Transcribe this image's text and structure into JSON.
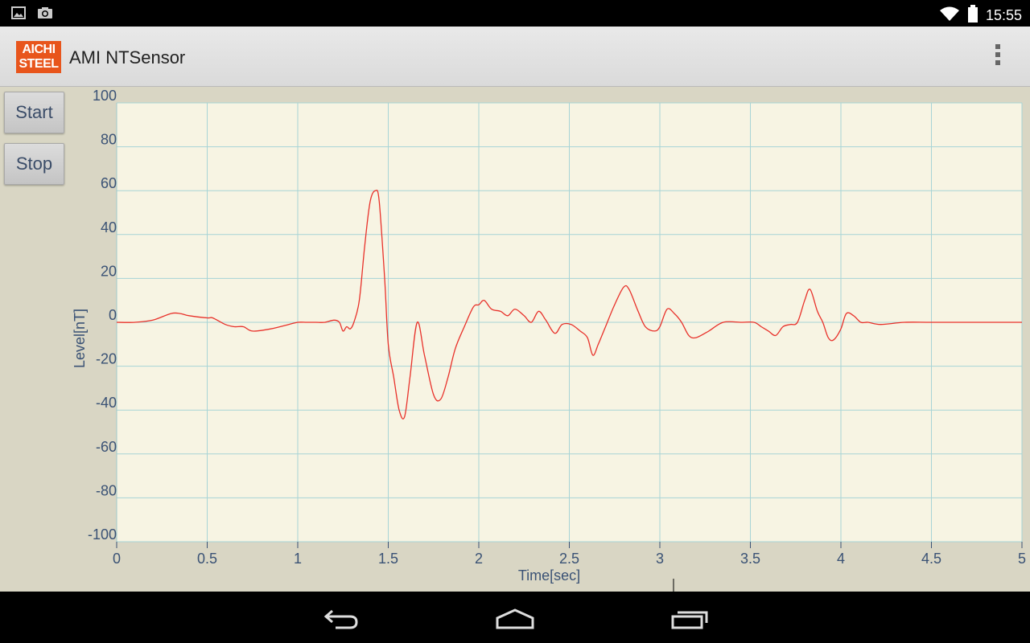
{
  "status_bar": {
    "time": "15:55",
    "icons": [
      "picture-icon",
      "camera-icon",
      "wifi-icon",
      "battery-icon"
    ]
  },
  "app": {
    "title": "AMI NTSensor",
    "logo_line1": "AICHI",
    "logo_line2": "STEEL",
    "brand_color": "#e8551c"
  },
  "controls": {
    "start_label": "Start",
    "stop_label": "Stop"
  },
  "chart_data": {
    "type": "line",
    "xlabel": "Time[sec]",
    "ylabel": "Level[nT]",
    "xlim": [
      0,
      5
    ],
    "ylim": [
      -100,
      100
    ],
    "x_ticks": [
      0,
      0.5,
      1,
      1.5,
      2,
      2.5,
      3,
      3.5,
      4,
      4.5,
      5
    ],
    "x_tick_labels": [
      "0",
      "0.5",
      "1",
      "1.5",
      "2",
      "2.5",
      "3",
      "3.5",
      "4",
      "4.5",
      "5"
    ],
    "y_ticks": [
      100,
      80,
      60,
      40,
      20,
      0,
      -20,
      -40,
      -60,
      -80,
      -100
    ],
    "y_tick_labels": [
      "100",
      "80",
      "60",
      "40",
      "20",
      "0",
      "-20",
      "-40",
      "-60",
      "-80",
      "-100"
    ],
    "grid": true,
    "line_color": "#e8312a",
    "plot_background": "#f7f4e3",
    "grid_color": "#a7d4d6",
    "series": [
      {
        "points": [
          [
            0,
            0
          ],
          [
            0.1,
            0
          ],
          [
            0.2,
            1
          ],
          [
            0.3,
            4
          ],
          [
            0.35,
            4
          ],
          [
            0.4,
            3
          ],
          [
            0.5,
            2
          ],
          [
            0.53,
            2
          ],
          [
            0.6,
            -1
          ],
          [
            0.65,
            -2
          ],
          [
            0.7,
            -2
          ],
          [
            0.75,
            -4
          ],
          [
            0.85,
            -3
          ],
          [
            0.95,
            -1
          ],
          [
            1.0,
            0
          ],
          [
            1.05,
            0
          ],
          [
            1.1,
            0
          ],
          [
            1.15,
            0
          ],
          [
            1.2,
            1
          ],
          [
            1.23,
            0
          ],
          [
            1.25,
            -4
          ],
          [
            1.27,
            -2
          ],
          [
            1.29,
            -3
          ],
          [
            1.31,
            0
          ],
          [
            1.34,
            10
          ],
          [
            1.37,
            35
          ],
          [
            1.4,
            55
          ],
          [
            1.43,
            60
          ],
          [
            1.45,
            55
          ],
          [
            1.48,
            20
          ],
          [
            1.5,
            -10
          ],
          [
            1.53,
            -25
          ],
          [
            1.56,
            -40
          ],
          [
            1.59,
            -43
          ],
          [
            1.62,
            -25
          ],
          [
            1.66,
            0
          ],
          [
            1.7,
            -15
          ],
          [
            1.75,
            -33
          ],
          [
            1.79,
            -35
          ],
          [
            1.83,
            -25
          ],
          [
            1.87,
            -12
          ],
          [
            1.92,
            -2
          ],
          [
            1.97,
            7
          ],
          [
            2.0,
            8
          ],
          [
            2.03,
            10
          ],
          [
            2.07,
            6
          ],
          [
            2.12,
            5
          ],
          [
            2.16,
            3
          ],
          [
            2.2,
            6
          ],
          [
            2.25,
            3
          ],
          [
            2.29,
            0
          ],
          [
            2.33,
            5
          ],
          [
            2.37,
            1
          ],
          [
            2.42,
            -5
          ],
          [
            2.46,
            -1
          ],
          [
            2.51,
            -1
          ],
          [
            2.56,
            -4
          ],
          [
            2.6,
            -7
          ],
          [
            2.63,
            -15
          ],
          [
            2.66,
            -10
          ],
          [
            2.7,
            -2
          ],
          [
            2.75,
            8
          ],
          [
            2.8,
            16
          ],
          [
            2.83,
            15
          ],
          [
            2.88,
            5
          ],
          [
            2.92,
            -2
          ],
          [
            2.97,
            -4
          ],
          [
            3.0,
            -2
          ],
          [
            3.04,
            6
          ],
          [
            3.08,
            4
          ],
          [
            3.12,
            0
          ],
          [
            3.16,
            -6
          ],
          [
            3.2,
            -7
          ],
          [
            3.27,
            -4
          ],
          [
            3.35,
            0
          ],
          [
            3.45,
            0
          ],
          [
            3.52,
            0
          ],
          [
            3.56,
            -2
          ],
          [
            3.6,
            -4
          ],
          [
            3.64,
            -6
          ],
          [
            3.68,
            -2
          ],
          [
            3.72,
            -1
          ],
          [
            3.76,
            0
          ],
          [
            3.8,
            10
          ],
          [
            3.83,
            15
          ],
          [
            3.87,
            5
          ],
          [
            3.9,
            0
          ],
          [
            3.93,
            -7
          ],
          [
            3.96,
            -8
          ],
          [
            4.0,
            -3
          ],
          [
            4.03,
            4
          ],
          [
            4.07,
            3
          ],
          [
            4.11,
            0
          ],
          [
            4.15,
            0
          ],
          [
            4.22,
            -1
          ],
          [
            4.35,
            0
          ],
          [
            4.5,
            0
          ],
          [
            4.75,
            0
          ],
          [
            5.0,
            0
          ]
        ]
      }
    ]
  }
}
